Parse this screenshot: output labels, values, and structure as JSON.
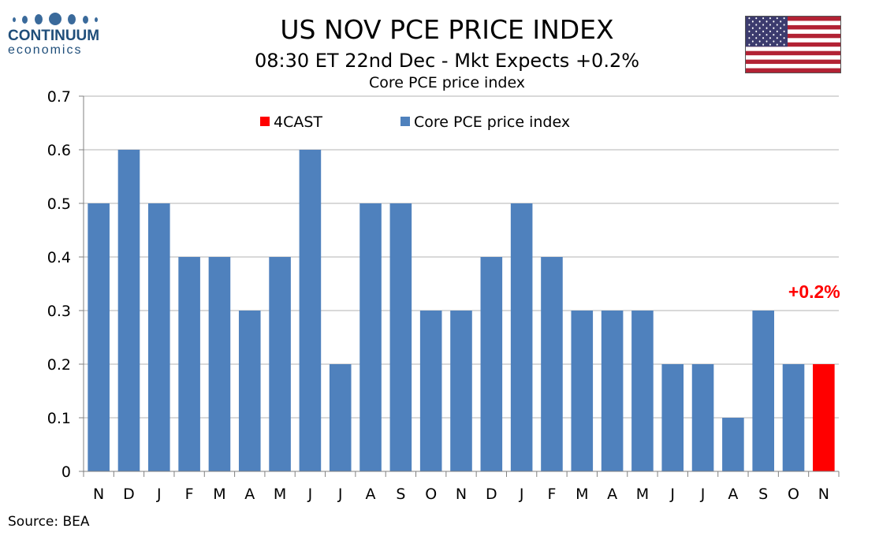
{
  "logo": {
    "word": "CONTINUUM",
    "sub": "economics"
  },
  "header": {
    "title": "US NOV PCE PRICE INDEX",
    "subtitle": "08:30 ET 22nd Dec - Mkt Expects +0.2%",
    "subtitle2": "Core PCE price index"
  },
  "source": "Source: BEA",
  "colors": {
    "series": "#4f81bd",
    "forecast": "#ff0000",
    "annotation": "#ff0000",
    "grid": "#b3b3b3"
  },
  "flag_icon": "us-flag-icon",
  "chart_data": {
    "type": "bar",
    "categories": [
      "N",
      "D",
      "J",
      "F",
      "M",
      "A",
      "M",
      "J",
      "J",
      "A",
      "S",
      "O",
      "N",
      "D",
      "J",
      "F",
      "M",
      "A",
      "M",
      "J",
      "J",
      "A",
      "S",
      "O",
      "N"
    ],
    "series": [
      {
        "name": "Core PCE price index",
        "values": [
          0.5,
          0.6,
          0.5,
          0.4,
          0.4,
          0.3,
          0.4,
          0.6,
          0.2,
          0.5,
          0.5,
          0.3,
          0.3,
          0.4,
          0.5,
          0.4,
          0.3,
          0.3,
          0.3,
          0.2,
          0.2,
          0.1,
          0.3,
          0.2,
          null
        ]
      },
      {
        "name": "4CAST",
        "values": [
          null,
          null,
          null,
          null,
          null,
          null,
          null,
          null,
          null,
          null,
          null,
          null,
          null,
          null,
          null,
          null,
          null,
          null,
          null,
          null,
          null,
          null,
          null,
          null,
          0.2
        ]
      }
    ],
    "yticks": [
      "0",
      "0.1",
      "0.2",
      "0.3",
      "0.4",
      "0.5",
      "0.6",
      "0.7"
    ],
    "ylim": [
      0,
      0.7
    ],
    "grid": true,
    "legend": [
      "4CAST",
      "Core PCE price index"
    ],
    "legend_position": "top-center",
    "annotation": {
      "text": "+0.2%",
      "category_index": 24
    }
  }
}
